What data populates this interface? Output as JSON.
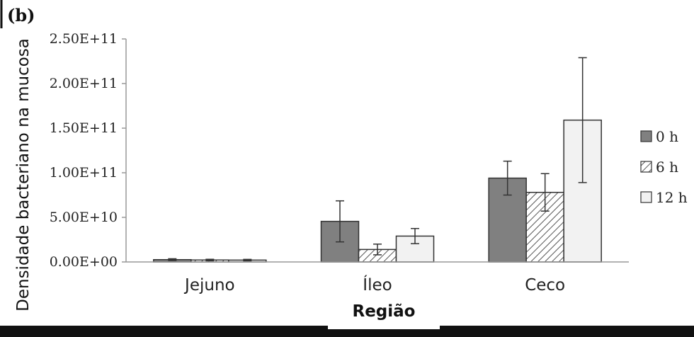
{
  "panel_label": "(b)",
  "chart_data": {
    "type": "bar",
    "categories": [
      "Jejuno",
      "Íleo",
      "Ceco"
    ],
    "series": [
      {
        "name": "0 h",
        "values": [
          2600000000.0,
          45500000000.0,
          94000000000.0
        ],
        "errors": [
          1000000000.0,
          23000000000.0,
          19000000000.0
        ],
        "fill": "#808080",
        "pattern": "solid"
      },
      {
        "name": "6 h",
        "values": [
          2200000000.0,
          14000000000.0,
          78000000000.0
        ],
        "errors": [
          800000000.0,
          6000000000.0,
          21000000000.0
        ],
        "fill": "#ffffff",
        "pattern": "hatch"
      },
      {
        "name": "12 h",
        "values": [
          2100000000.0,
          29000000000.0,
          159000000000.0
        ],
        "errors": [
          800000000.0,
          8500000000.0,
          70000000000.0
        ],
        "fill": "#f2f2f2",
        "pattern": "solid"
      }
    ],
    "yticks": [
      "0.00E+00",
      "5.00E+10",
      "1.00E+11",
      "1.50E+11",
      "2.00E+11",
      "2.50E+11"
    ],
    "ytick_values": [
      0,
      50000000000.0,
      100000000000.0,
      150000000000.0,
      200000000000.0,
      250000000000.0
    ],
    "ylim": [
      0,
      250000000000.0
    ],
    "ylabel": "Densidade bacteriano na mucosa",
    "xlabel": "Região",
    "grid": false,
    "legend_position": "right",
    "colors": {
      "bar_stroke": "#333333",
      "axis": "#999999",
      "error_bar": "#333333"
    }
  }
}
